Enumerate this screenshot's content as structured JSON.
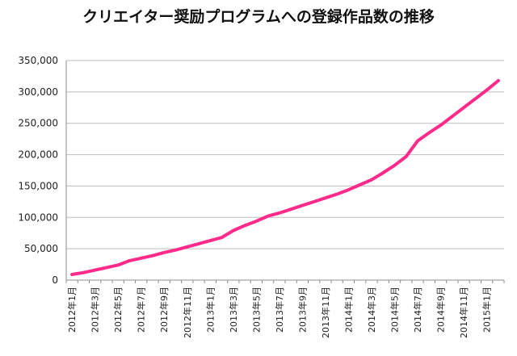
{
  "chart_data": {
    "type": "line",
    "title": "クリエイター奨励プログラムへの登録作品数の推移",
    "xlabel": "",
    "ylabel": "",
    "ylim": [
      0,
      350000
    ],
    "yticks": [
      0,
      50000,
      100000,
      150000,
      200000,
      250000,
      300000,
      350000
    ],
    "ytick_labels": [
      "0",
      "50,000",
      "100,000",
      "150,000",
      "200,000",
      "250,000",
      "300,000",
      "350,000"
    ],
    "x_tick_labels": [
      "2012年1月",
      "2012年3月",
      "2012年5月",
      "2012年7月",
      "2012年9月",
      "2012年11月",
      "2013年1月",
      "2013年3月",
      "2013年5月",
      "2013年7月",
      "2013年9月",
      "2013年11月",
      "2014年1月",
      "2014年3月",
      "2014年5月",
      "2014年7月",
      "2014年9月",
      "2014年11月",
      "2015年1月"
    ],
    "grid": true,
    "legend": "none",
    "line_color": "#ff2a8a",
    "x": [
      "2012年1月",
      "2012年2月",
      "2012年3月",
      "2012年4月",
      "2012年5月",
      "2012年6月",
      "2012年7月",
      "2012年8月",
      "2012年9月",
      "2012年10月",
      "2012年11月",
      "2012年12月",
      "2013年1月",
      "2013年2月",
      "2013年3月",
      "2013年4月",
      "2013年5月",
      "2013年6月",
      "2013年7月",
      "2013年8月",
      "2013年9月",
      "2013年10月",
      "2013年11月",
      "2013年12月",
      "2014年1月",
      "2014年2月",
      "2014年3月",
      "2014年4月",
      "2014年5月",
      "2014年6月",
      "2014年7月",
      "2014年8月",
      "2014年9月",
      "2014年10月",
      "2014年11月",
      "2014年12月",
      "2015年1月",
      "2015年2月"
    ],
    "series": [
      {
        "values": [
          9000,
          12000,
          16000,
          20000,
          24000,
          31000,
          35000,
          39000,
          44000,
          48000,
          53000,
          58000,
          63000,
          68000,
          79000,
          87000,
          94000,
          102000,
          107000,
          113000,
          119000,
          125000,
          131000,
          137000,
          144000,
          152000,
          160000,
          171000,
          183000,
          197000,
          222000,
          235000,
          247000,
          261000,
          275000,
          289000,
          303000,
          318000
        ]
      }
    ]
  }
}
